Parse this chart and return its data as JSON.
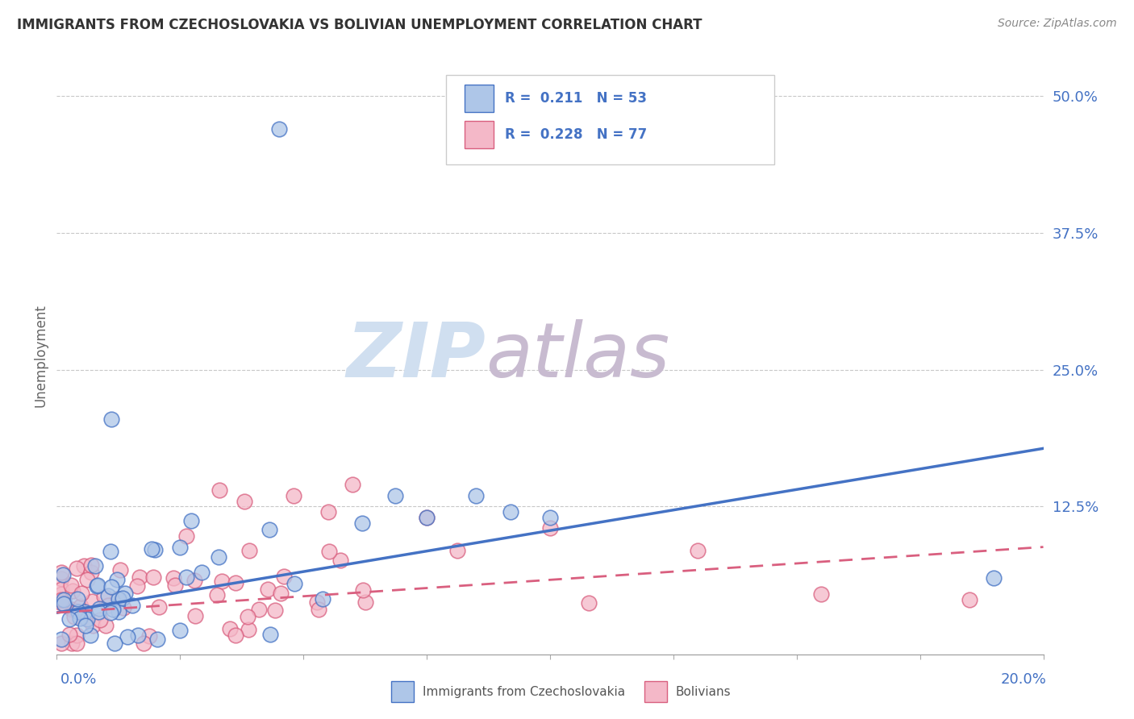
{
  "title": "IMMIGRANTS FROM CZECHOSLOVAKIA VS BOLIVIAN UNEMPLOYMENT CORRELATION CHART",
  "source": "Source: ZipAtlas.com",
  "ylabel": "Unemployment",
  "color_blue": "#aec6e8",
  "color_pink": "#f4b8c8",
  "line_blue": "#4472c4",
  "line_pink": "#d95f7f",
  "title_color": "#333333",
  "axis_label_color": "#4472c4",
  "ytick_color": "#4472c4",
  "watermark_color": "#d0dff0",
  "watermark_color2": "#c8bbd0",
  "xmin": 0.0,
  "xmax": 0.2,
  "ymin": -0.01,
  "ymax": 0.535,
  "ytick_vals": [
    0.0,
    0.125,
    0.25,
    0.375,
    0.5
  ],
  "ytick_labels": [
    "",
    "12.5%",
    "25.0%",
    "37.5%",
    "50.0%"
  ]
}
